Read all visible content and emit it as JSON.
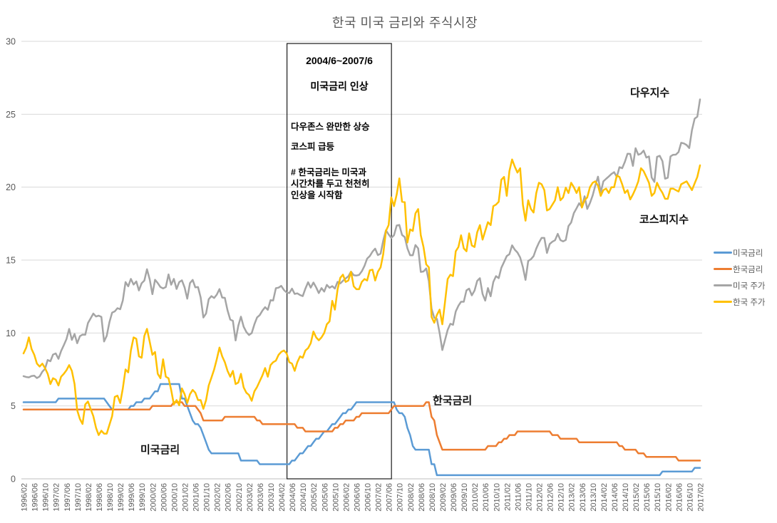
{
  "title": "한국 미국 금리와 주식시장",
  "annotation_box": {
    "x_from": "2004/06",
    "x_to": "2007/06",
    "period": "2004/6~2007/6",
    "headline": "미국금리 인상",
    "note1": "다우존스 완만한 상승",
    "note2": "코스피 급등",
    "note3_line1": "# 한국금리는 미국과",
    "note3_line2": "시간차를 두고 천천히",
    "note3_line3": "인상을 시작함"
  },
  "series_labels": {
    "dow": "다우지수",
    "kospi": "코스피지수",
    "korea_rate": "한국금리",
    "us_rate": "미국금리"
  },
  "chart_data": {
    "type": "line",
    "title": "한국 미국 금리와 주식시장",
    "xlabel": "",
    "ylabel": "",
    "ylim": [
      0,
      30
    ],
    "yticks": [
      0,
      5,
      10,
      15,
      20,
      25,
      30
    ],
    "grid": "horizontal",
    "legend_position": "right",
    "x_start": "1996/02",
    "x_end": "2017/02",
    "x_interval": "monthly",
    "x_tick_every_n_points": 4,
    "x_tick_labels": [
      "1996/02",
      "1996/06",
      "1996/10",
      "1997/02",
      "1997/06",
      "1997/10",
      "1998/02",
      "1998/06",
      "1998/10",
      "1999/02",
      "1999/06",
      "1999/10",
      "2000/02",
      "2000/06",
      "2000/10",
      "2001/02",
      "2001/06",
      "2001/10",
      "2002/02",
      "2002/06",
      "2002/10",
      "2003/02",
      "2003/06",
      "2003/10",
      "2004/02",
      "2004/06",
      "2004/10",
      "2005/02",
      "2005/06",
      "2005/10",
      "2006/02",
      "2006/06",
      "2006/10",
      "2007/02",
      "2007/06",
      "2007/10",
      "2008/02",
      "2008/06",
      "2008/10",
      "2009/02",
      "2009/06",
      "2009/10",
      "2010/02",
      "2010/06",
      "2010/10",
      "2011/02",
      "2011/06",
      "2011/10",
      "2012/02",
      "2012/06",
      "2012/10",
      "2013/02",
      "2013/06",
      "2013/10",
      "2014/02",
      "2014/06",
      "2014/10",
      "2015/02",
      "2015/06",
      "2015/10",
      "2016/02",
      "2016/06",
      "2016/10",
      "2017/02"
    ],
    "series": [
      {
        "name": "미국금리",
        "color": "#5B9BD5",
        "values": [
          5.25,
          5.25,
          5.25,
          5.25,
          5.25,
          5.25,
          5.25,
          5.25,
          5.25,
          5.25,
          5.25,
          5.25,
          5.25,
          5.5,
          5.5,
          5.5,
          5.5,
          5.5,
          5.5,
          5.5,
          5.5,
          5.5,
          5.5,
          5.5,
          5.5,
          5.5,
          5.5,
          5.5,
          5.5,
          5.5,
          5.5,
          5.25,
          5,
          4.75,
          4.75,
          4.75,
          4.75,
          4.75,
          4.75,
          4.75,
          5,
          5,
          5.25,
          5.25,
          5.25,
          5.5,
          5.5,
          5.5,
          5.75,
          6,
          6,
          6.5,
          6.5,
          6.5,
          6.5,
          6.5,
          6.5,
          6.5,
          6.5,
          5.5,
          5.5,
          5,
          4.5,
          4,
          3.75,
          3.75,
          3.5,
          3,
          2.5,
          2,
          1.75,
          1.75,
          1.75,
          1.75,
          1.75,
          1.75,
          1.75,
          1.75,
          1.75,
          1.75,
          1.75,
          1.25,
          1.25,
          1.25,
          1.25,
          1.25,
          1.25,
          1.25,
          1,
          1,
          1,
          1,
          1,
          1,
          1,
          1,
          1,
          1,
          1,
          1,
          1.25,
          1.25,
          1.5,
          1.75,
          1.75,
          2,
          2.25,
          2.25,
          2.5,
          2.75,
          2.75,
          3,
          3.25,
          3.25,
          3.5,
          3.75,
          3.75,
          4,
          4.25,
          4.5,
          4.5,
          4.75,
          4.75,
          5,
          5.25,
          5.25,
          5.25,
          5.25,
          5.25,
          5.25,
          5.25,
          5.25,
          5.25,
          5.25,
          5.25,
          5.25,
          5.25,
          5.25,
          5.25,
          4.75,
          4.5,
          4.5,
          4.25,
          3.5,
          3,
          2.25,
          2,
          2,
          2,
          2,
          2,
          2,
          1,
          1,
          0.25,
          0.25,
          0.25,
          0.25,
          0.25,
          0.25,
          0.25,
          0.25,
          0.25,
          0.25,
          0.25,
          0.25,
          0.25,
          0.25,
          0.25,
          0.25,
          0.25,
          0.25,
          0.25,
          0.25,
          0.25,
          0.25,
          0.25,
          0.25,
          0.25,
          0.25,
          0.25,
          0.25,
          0.25,
          0.25,
          0.25,
          0.25,
          0.25,
          0.25,
          0.25,
          0.25,
          0.25,
          0.25,
          0.25,
          0.25,
          0.25,
          0.25,
          0.25,
          0.25,
          0.25,
          0.25,
          0.25,
          0.25,
          0.25,
          0.25,
          0.25,
          0.25,
          0.25,
          0.25,
          0.25,
          0.25,
          0.25,
          0.25,
          0.25,
          0.25,
          0.25,
          0.25,
          0.25,
          0.25,
          0.25,
          0.25,
          0.25,
          0.25,
          0.25,
          0.25,
          0.25,
          0.25,
          0.25,
          0.25,
          0.25,
          0.25,
          0.25,
          0.25,
          0.25,
          0.25,
          0.25,
          0.25,
          0.25,
          0.25,
          0.5,
          0.5,
          0.5,
          0.5,
          0.5,
          0.5,
          0.5,
          0.5,
          0.5,
          0.5,
          0.5,
          0.5,
          0.75,
          0.75,
          0.75
        ]
      },
      {
        "name": "한국금리",
        "color": "#ED7D31",
        "values": [
          4.75,
          4.75,
          4.75,
          4.75,
          4.75,
          4.75,
          4.75,
          4.75,
          4.75,
          4.75,
          4.75,
          4.75,
          4.75,
          4.75,
          4.75,
          4.75,
          4.75,
          4.75,
          4.75,
          4.75,
          4.75,
          4.75,
          4.75,
          4.75,
          4.75,
          4.75,
          4.75,
          4.75,
          4.75,
          4.75,
          4.75,
          4.75,
          4.75,
          4.75,
          4.75,
          4.75,
          4.75,
          4.75,
          4.75,
          4.75,
          4.75,
          4.75,
          4.75,
          4.75,
          4.75,
          4.75,
          4.75,
          4.75,
          5,
          5,
          5,
          5,
          5,
          5,
          5,
          5,
          5.25,
          5.25,
          5.25,
          5.25,
          5,
          5,
          5,
          5,
          5,
          4.75,
          4.5,
          4,
          4,
          4,
          4,
          4,
          4,
          4,
          4,
          4.25,
          4.25,
          4.25,
          4.25,
          4.25,
          4.25,
          4.25,
          4.25,
          4.25,
          4.25,
          4.25,
          4.25,
          4,
          4,
          3.75,
          3.75,
          3.75,
          3.75,
          3.75,
          3.75,
          3.75,
          3.75,
          3.75,
          3.75,
          3.75,
          3.75,
          3.75,
          3.5,
          3.5,
          3.5,
          3.25,
          3.25,
          3.25,
          3.25,
          3.25,
          3.25,
          3.25,
          3.25,
          3.25,
          3.25,
          3.25,
          3.5,
          3.5,
          3.75,
          3.75,
          4,
          4,
          4,
          4,
          4.25,
          4.25,
          4.5,
          4.5,
          4.5,
          4.5,
          4.5,
          4.5,
          4.5,
          4.5,
          4.5,
          4.5,
          4.5,
          4.75,
          5,
          5,
          5,
          5,
          5,
          5,
          5,
          5,
          5,
          5,
          5,
          5,
          5.25,
          5.25,
          4.25,
          4,
          3,
          2.5,
          2,
          2,
          2,
          2,
          2,
          2,
          2,
          2,
          2,
          2,
          2,
          2,
          2,
          2,
          2,
          2,
          2,
          2.25,
          2.25,
          2.25,
          2.25,
          2.5,
          2.5,
          2.75,
          2.75,
          3,
          3,
          3,
          3.25,
          3.25,
          3.25,
          3.25,
          3.25,
          3.25,
          3.25,
          3.25,
          3.25,
          3.25,
          3.25,
          3.25,
          3.25,
          3,
          3,
          3,
          2.75,
          2.75,
          2.75,
          2.75,
          2.75,
          2.75,
          2.75,
          2.5,
          2.5,
          2.5,
          2.5,
          2.5,
          2.5,
          2.5,
          2.5,
          2.5,
          2.5,
          2.5,
          2.5,
          2.5,
          2.5,
          2.5,
          2.25,
          2.25,
          2,
          2,
          2,
          2,
          2,
          1.75,
          1.75,
          1.75,
          1.5,
          1.5,
          1.5,
          1.5,
          1.5,
          1.5,
          1.5,
          1.5,
          1.5,
          1.5,
          1.5,
          1.5,
          1.25,
          1.25,
          1.25,
          1.25,
          1.25,
          1.25,
          1.25,
          1.25,
          1.25
        ]
      },
      {
        "name": "미국 주가",
        "color": "#A5A5A5",
        "values": [
          7.04,
          6.98,
          6.96,
          7.05,
          7.07,
          6.91,
          7.02,
          7.35,
          7.54,
          8.15,
          8.06,
          8.52,
          8.6,
          8.23,
          8.76,
          9.16,
          9.59,
          10.28,
          9.53,
          9.93,
          9.3,
          9.78,
          9.89,
          9.88,
          10.68,
          11,
          11.33,
          11.13,
          11.19,
          11.1,
          9.42,
          9.8,
          10.74,
          11.4,
          11.48,
          11.7,
          11.63,
          12.23,
          13.49,
          13.2,
          13.71,
          13.32,
          13.54,
          12.92,
          13.41,
          13.6,
          14.37,
          13.68,
          12.66,
          13.65,
          13.42,
          13.15,
          13.06,
          13.15,
          14.02,
          13.31,
          13.71,
          13.02,
          13.49,
          13.61,
          13.12,
          12.35,
          13.42,
          13.64,
          13.13,
          13.15,
          12.44,
          11.06,
          11.34,
          12.32,
          12.53,
          12.4,
          12.63,
          13.01,
          12.43,
          12.41,
          11.55,
          10.92,
          10.83,
          9.49,
          10.5,
          11.12,
          10.43,
          10.07,
          9.86,
          9.99,
          10.6,
          11.06,
          11.23,
          11.54,
          11.77,
          11.59,
          12.25,
          12.23,
          13.07,
          13.11,
          13.23,
          12.95,
          12.78,
          12.74,
          13.04,
          12.68,
          12.72,
          12.6,
          12.53,
          13.04,
          13.48,
          13.11,
          13.46,
          13.13,
          12.74,
          13.08,
          12.84,
          13.3,
          13.1,
          13.21,
          13.05,
          13.51,
          13.4,
          13.58,
          13.74,
          13.89,
          14.21,
          13.96,
          13.94,
          13.98,
          14.23,
          14.6,
          15.1,
          15.28,
          15.58,
          15.78,
          15.34,
          15.44,
          16.33,
          17.04,
          16.76,
          16.52,
          16.7,
          17.37,
          17.41,
          16.72,
          16.58,
          15.81,
          15.33,
          15.33,
          16.03,
          15.8,
          14.19,
          14.22,
          14.43,
          13.56,
          11.66,
          11.04,
          10.97,
          10,
          8.83,
          9.51,
          10.21,
          10.63,
          10.56,
          11.47,
          11.87,
          12.14,
          12.14,
          12.93,
          13.04,
          12.58,
          12.91,
          13.57,
          13.76,
          12.67,
          12.22,
          13.08,
          12.52,
          13.49,
          13.9,
          13.76,
          14.47,
          14.87,
          15.28,
          15.4,
          16.01,
          15.71,
          15.52,
          15.18,
          14.52,
          13.64,
          14.94,
          15.06,
          15.27,
          15.79,
          16.19,
          16.52,
          16.52,
          15.49,
          16.1,
          16.26,
          16.36,
          16.8,
          16.37,
          16.28,
          16.38,
          17.33,
          17.57,
          18.22,
          18.55,
          18.9,
          18.64,
          19.38,
          18.51,
          18.91,
          19.43,
          20.11,
          20.72,
          19.62,
          20.4,
          20.57,
          20.73,
          20.9,
          21.03,
          20.7,
          21.37,
          21.3,
          21.74,
          22.29,
          22.28,
          21.46,
          22.67,
          22.22,
          22.3,
          22.51,
          22.03,
          22.11,
          20.66,
          20.36,
          22.08,
          22.15,
          21.78,
          20.58,
          20.65,
          22.11,
          22.22,
          22.23,
          22.41,
          23.04,
          23,
          22.89,
          22.68,
          23.91,
          24.7,
          24.83,
          26.02
        ]
      },
      {
        "name": "한국 주가",
        "color": "#FFC000",
        "values": [
          8.6,
          9,
          9.7,
          8.9,
          8.5,
          7.9,
          7.7,
          7.9,
          7.6,
          7.2,
          6.5,
          6.9,
          6.8,
          6.4,
          7,
          7.2,
          7.45,
          7.8,
          7.4,
          6.5,
          4.7,
          4.1,
          3.76,
          5.1,
          5.3,
          4.8,
          4.3,
          3.5,
          3,
          3.3,
          3.1,
          3.1,
          3.7,
          4.3,
          5.62,
          5.7,
          5.2,
          6.2,
          7.5,
          7.3,
          8.8,
          9.7,
          9.6,
          8.4,
          8.3,
          9.8,
          10.28,
          9.4,
          8.5,
          8.7,
          7.2,
          6.9,
          8.2,
          7,
          6.9,
          6.1,
          5.1,
          5.4,
          5.04,
          6.2,
          5.8,
          5.2,
          5.8,
          6.1,
          5.9,
          5.4,
          5.4,
          4.8,
          5.4,
          6.4,
          6.94,
          7.5,
          8.2,
          9,
          8.4,
          8,
          7.4,
          7,
          7.4,
          6.5,
          6.6,
          7.2,
          6.27,
          5.9,
          5.75,
          5.35,
          6,
          6.3,
          6.7,
          7.1,
          7.6,
          7,
          7.8,
          8,
          8.1,
          8.5,
          8.7,
          8.8,
          8.6,
          8,
          7.9,
          7.4,
          8,
          8.4,
          8.3,
          8.8,
          8.96,
          9.3,
          10.1,
          9.7,
          9.5,
          9.7,
          10,
          10.6,
          10.8,
          12.2,
          11.6,
          13,
          13.79,
          14,
          13.5,
          13.6,
          14.2,
          13.2,
          13,
          13,
          13.5,
          13.7,
          13.6,
          14.3,
          14.34,
          13.6,
          14.2,
          14.5,
          15.4,
          17,
          17.4,
          19.3,
          18.7,
          19.5,
          20.6,
          19,
          18.97,
          16.2,
          17.1,
          17,
          18.2,
          18.5,
          16.7,
          15.9,
          14.7,
          14.5,
          11.1,
          10.7,
          11.24,
          11.6,
          10.6,
          12.1,
          13.7,
          14,
          13.9,
          15.6,
          15.9,
          16.7,
          15.8,
          15.6,
          16.83,
          16,
          15.9,
          16.9,
          17.4,
          16.4,
          17,
          17.6,
          17.4,
          18.7,
          18.8,
          19,
          20.51,
          20.7,
          19.4,
          21.1,
          21.9,
          21.4,
          21,
          21.3,
          18.8,
          17.7,
          19.1,
          18.5,
          18.26,
          19.6,
          20.3,
          20.2,
          19.8,
          18.4,
          18.5,
          18.8,
          19.1,
          20,
          19.1,
          19.3,
          19.97,
          19.6,
          20.3,
          20,
          19.6,
          20,
          18.6,
          19.1,
          19.3,
          20,
          20.3,
          20.4,
          20.11,
          19.4,
          19.8,
          19.9,
          19.6,
          20,
          20,
          20.8,
          20.7,
          20.2,
          19.6,
          19.8,
          19.16,
          19.5,
          19.9,
          20.4,
          21.3,
          21.1,
          20.7,
          20.3,
          19.4,
          19.6,
          20.3,
          19.9,
          19.61,
          19.2,
          19.2,
          19.9,
          19.9,
          19.8,
          19.7,
          20.2,
          20.3,
          20.4,
          20.1,
          19.8,
          20.26,
          20.7,
          21.5
        ]
      }
    ]
  }
}
